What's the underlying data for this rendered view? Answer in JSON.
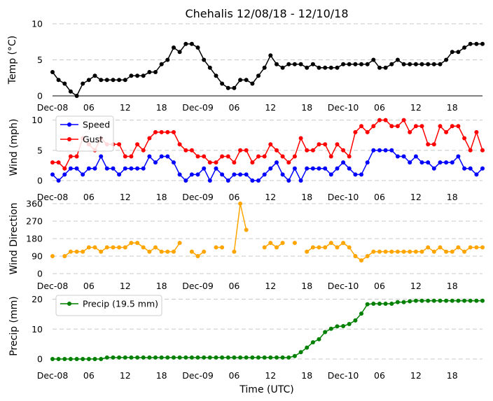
{
  "title": "Chehalis 12/08/18 - 12/10/18",
  "x_label": "Time (UTC)",
  "x_ticks": [
    "Dec-08",
    "06",
    "12",
    "18",
    "Dec-09",
    "06",
    "12",
    "18",
    "Dec-10",
    "06",
    "12",
    "18"
  ],
  "colors": {
    "temp": "#000000",
    "speed": "#0000ff",
    "gust": "#ff0000",
    "direction": "#ffa500",
    "precip": "#008000",
    "grid": "#c8c8c8"
  },
  "chart_data": [
    {
      "type": "line",
      "ylabel": "Temp ($^\\circ$C)",
      "ylabel_display": "Temp (°C)",
      "ylim": [
        0,
        10
      ],
      "yticks": [
        "0",
        "5",
        "10"
      ],
      "x_unit": "hours since Dec-08 00:00 UTC",
      "series": [
        {
          "name": "Temp",
          "values": [
            3.3,
            2.2,
            1.7,
            0.6,
            0.0,
            1.7,
            2.2,
            2.8,
            2.2,
            2.2,
            2.2,
            2.2,
            2.2,
            2.8,
            2.8,
            2.8,
            3.3,
            3.3,
            4.4,
            5.0,
            6.7,
            6.1,
            7.2,
            7.2,
            6.7,
            5.0,
            3.9,
            2.8,
            1.7,
            1.1,
            1.1,
            2.2,
            2.2,
            1.7,
            2.8,
            3.9,
            5.6,
            4.4,
            3.9,
            4.4,
            4.4,
            4.4,
            3.9,
            4.4,
            3.9,
            3.9,
            3.9,
            3.9,
            4.4,
            4.4,
            4.4,
            4.4,
            4.4,
            5.0,
            3.9,
            3.9,
            4.4,
            5.0,
            4.4,
            4.4,
            4.4,
            4.4,
            4.4,
            4.4,
            4.4,
            5.0,
            6.1,
            6.1,
            6.7,
            7.2,
            7.2,
            7.2
          ]
        }
      ]
    },
    {
      "type": "line",
      "ylabel": "Wind (mph)",
      "ylim": [
        0,
        11
      ],
      "yticks": [
        "0",
        "5",
        "10"
      ],
      "legend": "top-left",
      "series": [
        {
          "name": "Speed",
          "values": [
            1,
            0,
            1,
            2,
            2,
            1,
            2,
            2,
            4,
            2,
            2,
            1,
            2,
            2,
            2,
            2,
            4,
            3,
            4,
            4,
            3,
            1,
            0,
            1,
            1,
            2,
            0,
            2,
            1,
            0,
            1,
            1,
            1,
            0,
            0,
            1,
            2,
            3,
            1,
            0,
            2,
            0,
            2,
            2,
            2,
            2,
            1,
            2,
            3,
            2,
            1,
            1,
            3,
            5,
            5,
            5,
            5,
            4,
            4,
            3,
            4,
            3,
            3,
            2,
            3,
            3,
            3,
            4,
            2,
            2,
            1,
            2
          ]
        },
        {
          "name": "Gust",
          "values": [
            3,
            3,
            2,
            4,
            4,
            7,
            6,
            5,
            7,
            6,
            6,
            6,
            4,
            4,
            6,
            5,
            7,
            8,
            8,
            8,
            8,
            6,
            5,
            5,
            4,
            4,
            3,
            3,
            4,
            4,
            3,
            5,
            5,
            3,
            4,
            4,
            6,
            5,
            4,
            3,
            4,
            7,
            5,
            5,
            6,
            6,
            4,
            6,
            5,
            4,
            8,
            9,
            8,
            9,
            10,
            10,
            9,
            9,
            10,
            8,
            9,
            9,
            6,
            6,
            9,
            8,
            9,
            9,
            7,
            5,
            8,
            5
          ]
        }
      ]
    },
    {
      "type": "line",
      "ylabel": "Wind Direction",
      "ylim": [
        0,
        360
      ],
      "yticks": [
        "0",
        "90",
        "180",
        "270",
        "360"
      ],
      "series": [
        {
          "name": "Direction",
          "values": [
            90,
            null,
            90,
            113,
            113,
            113,
            135,
            135,
            113,
            135,
            135,
            135,
            135,
            158,
            158,
            135,
            113,
            135,
            113,
            113,
            113,
            158,
            null,
            113,
            90,
            113,
            null,
            135,
            135,
            null,
            113,
            360,
            225,
            null,
            null,
            135,
            158,
            135,
            158,
            null,
            158,
            null,
            113,
            135,
            135,
            135,
            158,
            135,
            158,
            135,
            90,
            68,
            90,
            113,
            113,
            113,
            113,
            113,
            113,
            113,
            113,
            113,
            135,
            113,
            135,
            113,
            113,
            135,
            113,
            135,
            135,
            135
          ]
        }
      ]
    },
    {
      "type": "line",
      "ylabel": "Precip (mm)",
      "ylim": [
        0,
        22
      ],
      "yticks": [
        "0",
        "10",
        "20"
      ],
      "legend": "top-left",
      "series": [
        {
          "name": "Precip (19.5 mm)",
          "values": [
            0,
            0,
            0,
            0,
            0,
            0,
            0,
            0,
            0,
            0.5,
            0.5,
            0.5,
            0.5,
            0.5,
            0.5,
            0.5,
            0.5,
            0.5,
            0.5,
            0.5,
            0.5,
            0.5,
            0.5,
            0.5,
            0.5,
            0.5,
            0.5,
            0.5,
            0.5,
            0.5,
            0.5,
            0.5,
            0.5,
            0.5,
            0.5,
            0.5,
            0.5,
            0.5,
            0.5,
            0.5,
            1,
            2.3,
            3.8,
            5.6,
            6.6,
            9,
            10.1,
            10.9,
            11,
            11.7,
            12.9,
            15.2,
            18.3,
            18.5,
            18.5,
            18.5,
            18.5,
            19,
            19,
            19.3,
            19.5,
            19.5,
            19.5,
            19.5,
            19.5,
            19.5,
            19.5,
            19.5,
            19.5,
            19.5,
            19.5,
            19.5
          ]
        }
      ]
    }
  ]
}
